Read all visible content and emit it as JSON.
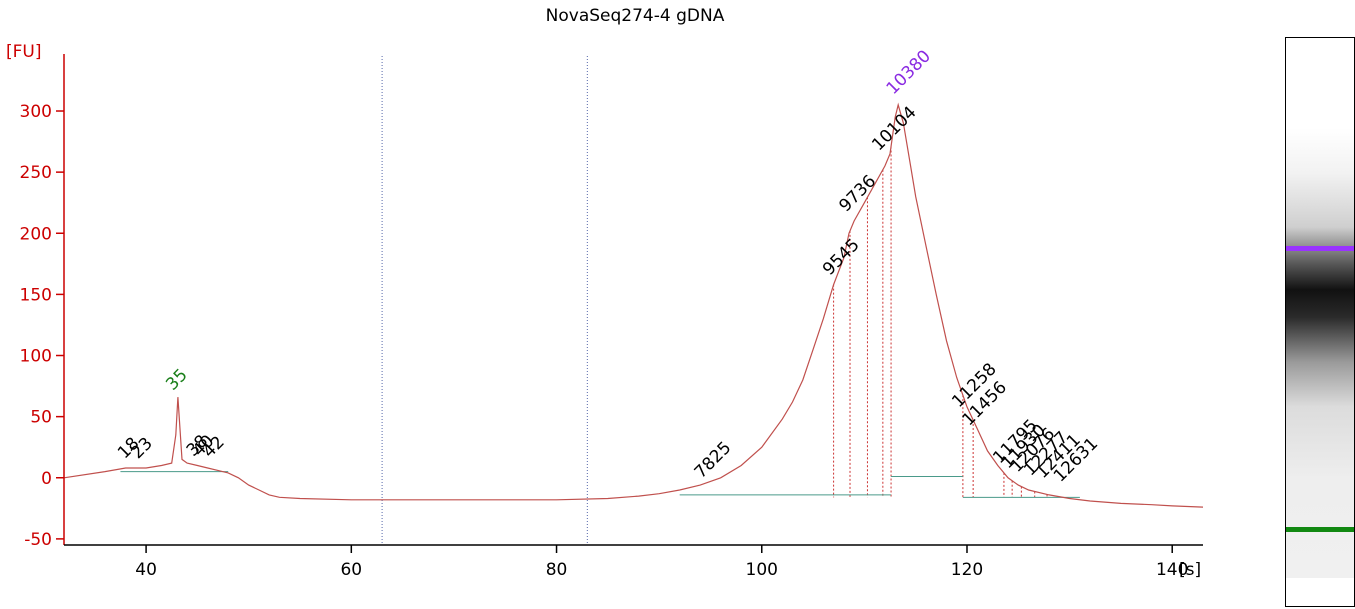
{
  "title": "NovaSeq274-4 gDNA",
  "chart_data": {
    "type": "line",
    "title": "NovaSeq274-4 gDNA",
    "xlabel": "[s]",
    "ylabel": "[FU]",
    "xlim": [
      32,
      143
    ],
    "ylim": [
      -55,
      345
    ],
    "xticks": [
      40,
      60,
      80,
      100,
      120,
      140
    ],
    "yticks": [
      -50,
      0,
      50,
      100,
      150,
      200,
      250,
      300
    ],
    "grid": false,
    "series": [
      {
        "color": "#c0504d",
        "x": [
          32,
          36,
          38,
          40,
          41.5,
          42.5,
          42.9,
          43.1,
          43.5,
          44,
          45,
          46,
          47,
          48,
          49,
          50,
          51,
          52,
          53,
          55,
          60,
          70,
          80,
          85,
          88,
          90,
          92,
          94,
          96,
          98,
          100,
          102,
          103,
          104,
          105,
          106,
          107,
          108,
          108.5,
          109,
          110,
          111,
          112,
          112.5,
          113,
          113.3,
          113.8,
          114.5,
          115,
          116,
          117,
          118,
          119,
          120,
          121,
          122,
          123,
          124,
          125,
          126,
          128,
          130,
          132,
          135,
          138,
          140,
          143
        ],
        "y": [
          0,
          5,
          8,
          8,
          10,
          12,
          35,
          66,
          15,
          12,
          10,
          8,
          6,
          4,
          0,
          -6,
          -10,
          -14,
          -16,
          -17,
          -18,
          -18,
          -18,
          -17,
          -15,
          -13,
          -10,
          -6,
          0,
          10,
          25,
          48,
          62,
          80,
          105,
          130,
          158,
          180,
          200,
          210,
          225,
          240,
          255,
          265,
          295,
          305,
          290,
          255,
          230,
          190,
          150,
          112,
          82,
          58,
          40,
          22,
          10,
          0,
          -6,
          -10,
          -14,
          -17,
          -19,
          -21,
          -22,
          -23,
          -24
        ]
      }
    ],
    "vertical_lines": [
      63,
      83
    ],
    "peak_labels": [
      {
        "label": "18",
        "x": 38.3,
        "y": 10,
        "color": "#000000"
      },
      {
        "label": "23",
        "x": 39.6,
        "y": 10,
        "color": "#000000"
      },
      {
        "label": "35",
        "x": 43.0,
        "y": 66,
        "color": "#1a7f1a"
      },
      {
        "label": "38",
        "x": 45.0,
        "y": 12,
        "color": "#000000"
      },
      {
        "label": "40",
        "x": 45.6,
        "y": 12,
        "color": "#000000"
      },
      {
        "label": "42",
        "x": 46.6,
        "y": 11,
        "color": "#000000"
      },
      {
        "label": "7825",
        "x": 94.5,
        "y": -6,
        "color": "#000000"
      },
      {
        "label": "9545",
        "x": 107.0,
        "y": 160,
        "color": "#000000"
      },
      {
        "label": "9736",
        "x": 108.6,
        "y": 212,
        "color": "#000000"
      },
      {
        "label": "10104",
        "x": 111.8,
        "y": 262,
        "color": "#000000"
      },
      {
        "label": "10380",
        "x": 113.2,
        "y": 308,
        "color": "#8a2be2"
      },
      {
        "label": "11258",
        "x": 119.6,
        "y": 52,
        "color": "#000000"
      },
      {
        "label": "11456",
        "x": 120.6,
        "y": 37,
        "color": "#000000"
      },
      {
        "label": "11795",
        "x": 123.6,
        "y": 6,
        "color": "#000000"
      },
      {
        "label": "11930",
        "x": 124.4,
        "y": 2,
        "color": "#000000"
      },
      {
        "label": "12076",
        "x": 125.3,
        "y": -1,
        "color": "#000000"
      },
      {
        "label": "12277",
        "x": 126.6,
        "y": -4,
        "color": "#000000"
      },
      {
        "label": "12411",
        "x": 127.8,
        "y": -6,
        "color": "#000000"
      },
      {
        "label": "12631",
        "x": 129.5,
        "y": -9,
        "color": "#000000"
      }
    ],
    "dotted_drops": [
      107.0,
      108.6,
      110.3,
      111.8,
      112.6,
      119.6,
      120.6,
      123.6,
      124.4,
      125.3,
      126.6,
      127.8,
      129.5
    ]
  },
  "gel": {
    "upper_marker_color": "#9933ff",
    "lower_marker_color": "#118811"
  }
}
